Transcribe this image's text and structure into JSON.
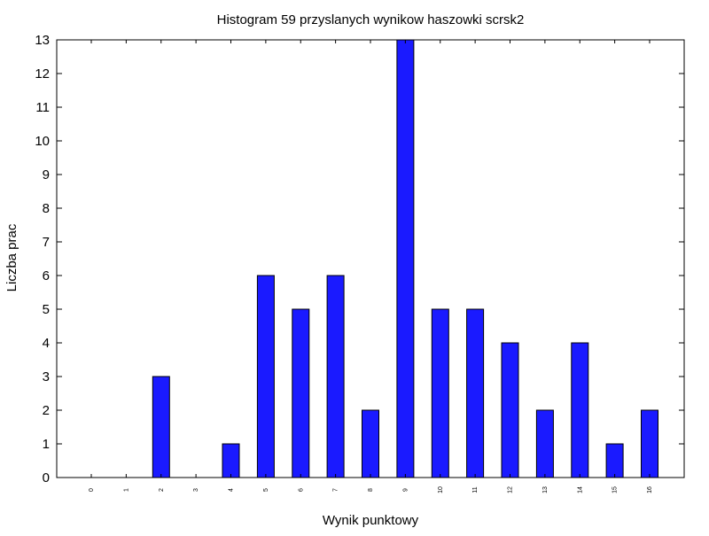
{
  "chart_data": {
    "type": "bar",
    "title": "Histogram 59 przyslanych wynikow haszowki scrsk2",
    "xlabel": "Wynik punktowy",
    "ylabel": "Liczba prac",
    "categories": [
      "0",
      "1",
      "2",
      "3",
      "4",
      "5",
      "6",
      "7",
      "8",
      "9",
      "10",
      "11",
      "12",
      "13",
      "14",
      "15",
      "16"
    ],
    "values": [
      0,
      0,
      3,
      0,
      1,
      6,
      5,
      6,
      2,
      13,
      5,
      5,
      4,
      2,
      4,
      1,
      2
    ],
    "ylim": [
      0,
      13
    ],
    "yticks": [
      "0",
      "1",
      "2",
      "3",
      "4",
      "5",
      "6",
      "7",
      "8",
      "9",
      "10",
      "11",
      "12",
      "13"
    ],
    "grid": false,
    "colors": {
      "bar_fill": "#1a1aff",
      "bar_stroke": "#000000",
      "axis": "#000000"
    }
  }
}
